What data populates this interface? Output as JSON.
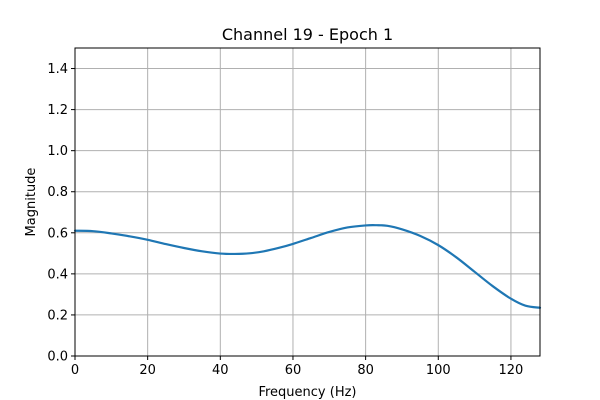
{
  "chart_data": {
    "type": "line",
    "title": "Channel 19 - Epoch 1",
    "xlabel": "Frequency (Hz)",
    "ylabel": "Magnitude",
    "xlim": [
      0,
      128
    ],
    "ylim": [
      0,
      1.5
    ],
    "x_ticks": [
      0,
      20,
      40,
      60,
      80,
      100,
      120
    ],
    "y_ticks": [
      0.0,
      0.2,
      0.4,
      0.6,
      0.8,
      1.0,
      1.2,
      1.4
    ],
    "x_tick_labels": [
      "0",
      "20",
      "40",
      "60",
      "80",
      "100",
      "120"
    ],
    "y_tick_labels": [
      "0.0",
      "0.2",
      "0.4",
      "0.6",
      "0.8",
      "1.0",
      "1.2",
      "1.4"
    ],
    "grid": true,
    "series": [
      {
        "color": "#1f77b4",
        "x": [
          0,
          5,
          10,
          15,
          20,
          25,
          30,
          35,
          40,
          44,
          48,
          52,
          56,
          60,
          65,
          70,
          75,
          80,
          83,
          86,
          90,
          95,
          100,
          105,
          110,
          115,
          120,
          124,
          128
        ],
        "y": [
          0.61,
          0.608,
          0.597,
          0.583,
          0.566,
          0.545,
          0.526,
          0.51,
          0.499,
          0.497,
          0.5,
          0.51,
          0.526,
          0.546,
          0.575,
          0.604,
          0.626,
          0.636,
          0.637,
          0.634,
          0.617,
          0.585,
          0.54,
          0.48,
          0.41,
          0.34,
          0.279,
          0.245,
          0.235
        ]
      }
    ]
  }
}
